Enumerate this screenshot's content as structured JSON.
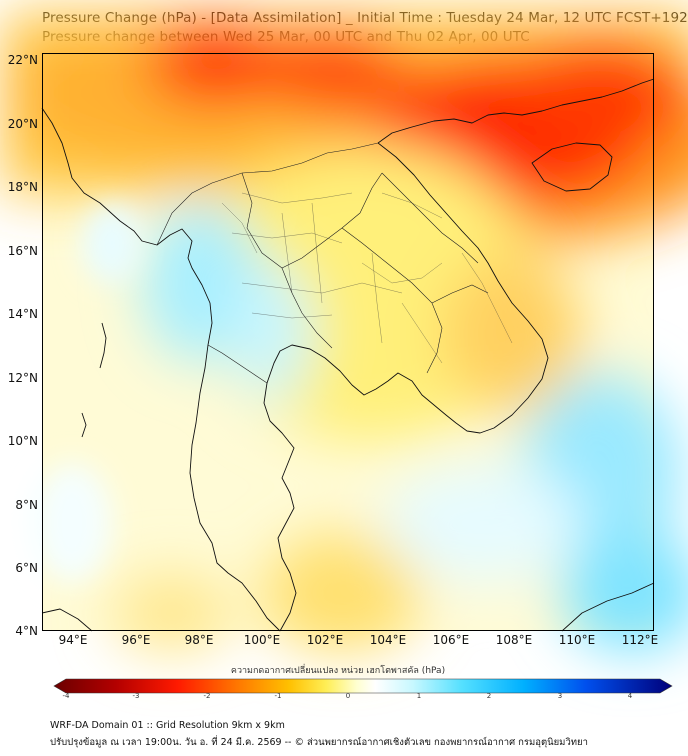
{
  "header": {
    "title_line1": "Pressure Change (hPa) - [Data Assimilation] _ Initial Time : Tuesday 24 Mar, 12 UTC FCST+192",
    "title_line2": "Pressure change between Wed 25 Mar, 00 UTC and Thu 02 Apr, 00 UTC"
  },
  "map": {
    "lat_labels": [
      "22°N",
      "20°N",
      "18°N",
      "16°N",
      "14°N",
      "12°N",
      "10°N",
      "8°N",
      "6°N",
      "4°N"
    ],
    "lon_labels": [
      "94°E",
      "96°E",
      "98°E",
      "100°E",
      "102°E",
      "104°E",
      "106°E",
      "108°E",
      "110°E",
      "112°E"
    ],
    "extent": {
      "lon_min": 93,
      "lon_max": 112.3,
      "lat_min": 4,
      "lat_max": 22.2
    }
  },
  "colorbar": {
    "title": "ความกดอากาศเปลี่ยนแปลง หน่วย เฮกโตพาสคัล (hPa)",
    "ticks": [
      "-4",
      "-3",
      "-2",
      "-1",
      "0",
      "1",
      "2",
      "3",
      "4"
    ],
    "range": [
      -4,
      4
    ],
    "colors": [
      "#6b0000",
      "#b30000",
      "#ff1a00",
      "#ff6600",
      "#ffb000",
      "#ffee55",
      "#ffffd0",
      "#ffffff",
      "#c8f8ff",
      "#55e0ff",
      "#00aaff",
      "#0044ee",
      "#00007a"
    ]
  },
  "footer": {
    "line1": "WRF-DA Domain 01 :: Grid Resolution 9km x 9km",
    "line2": "ปรับปรุงข้อมูล ณ เวลา 19:00น. วัน อ. ที่ 24 มี.ค. 2569 -- © ส่วนพยากรณ์อากาศเชิงตัวเลข กองพยากรณ์อากาศ กรมอุตุนิยมวิทยา"
  }
}
